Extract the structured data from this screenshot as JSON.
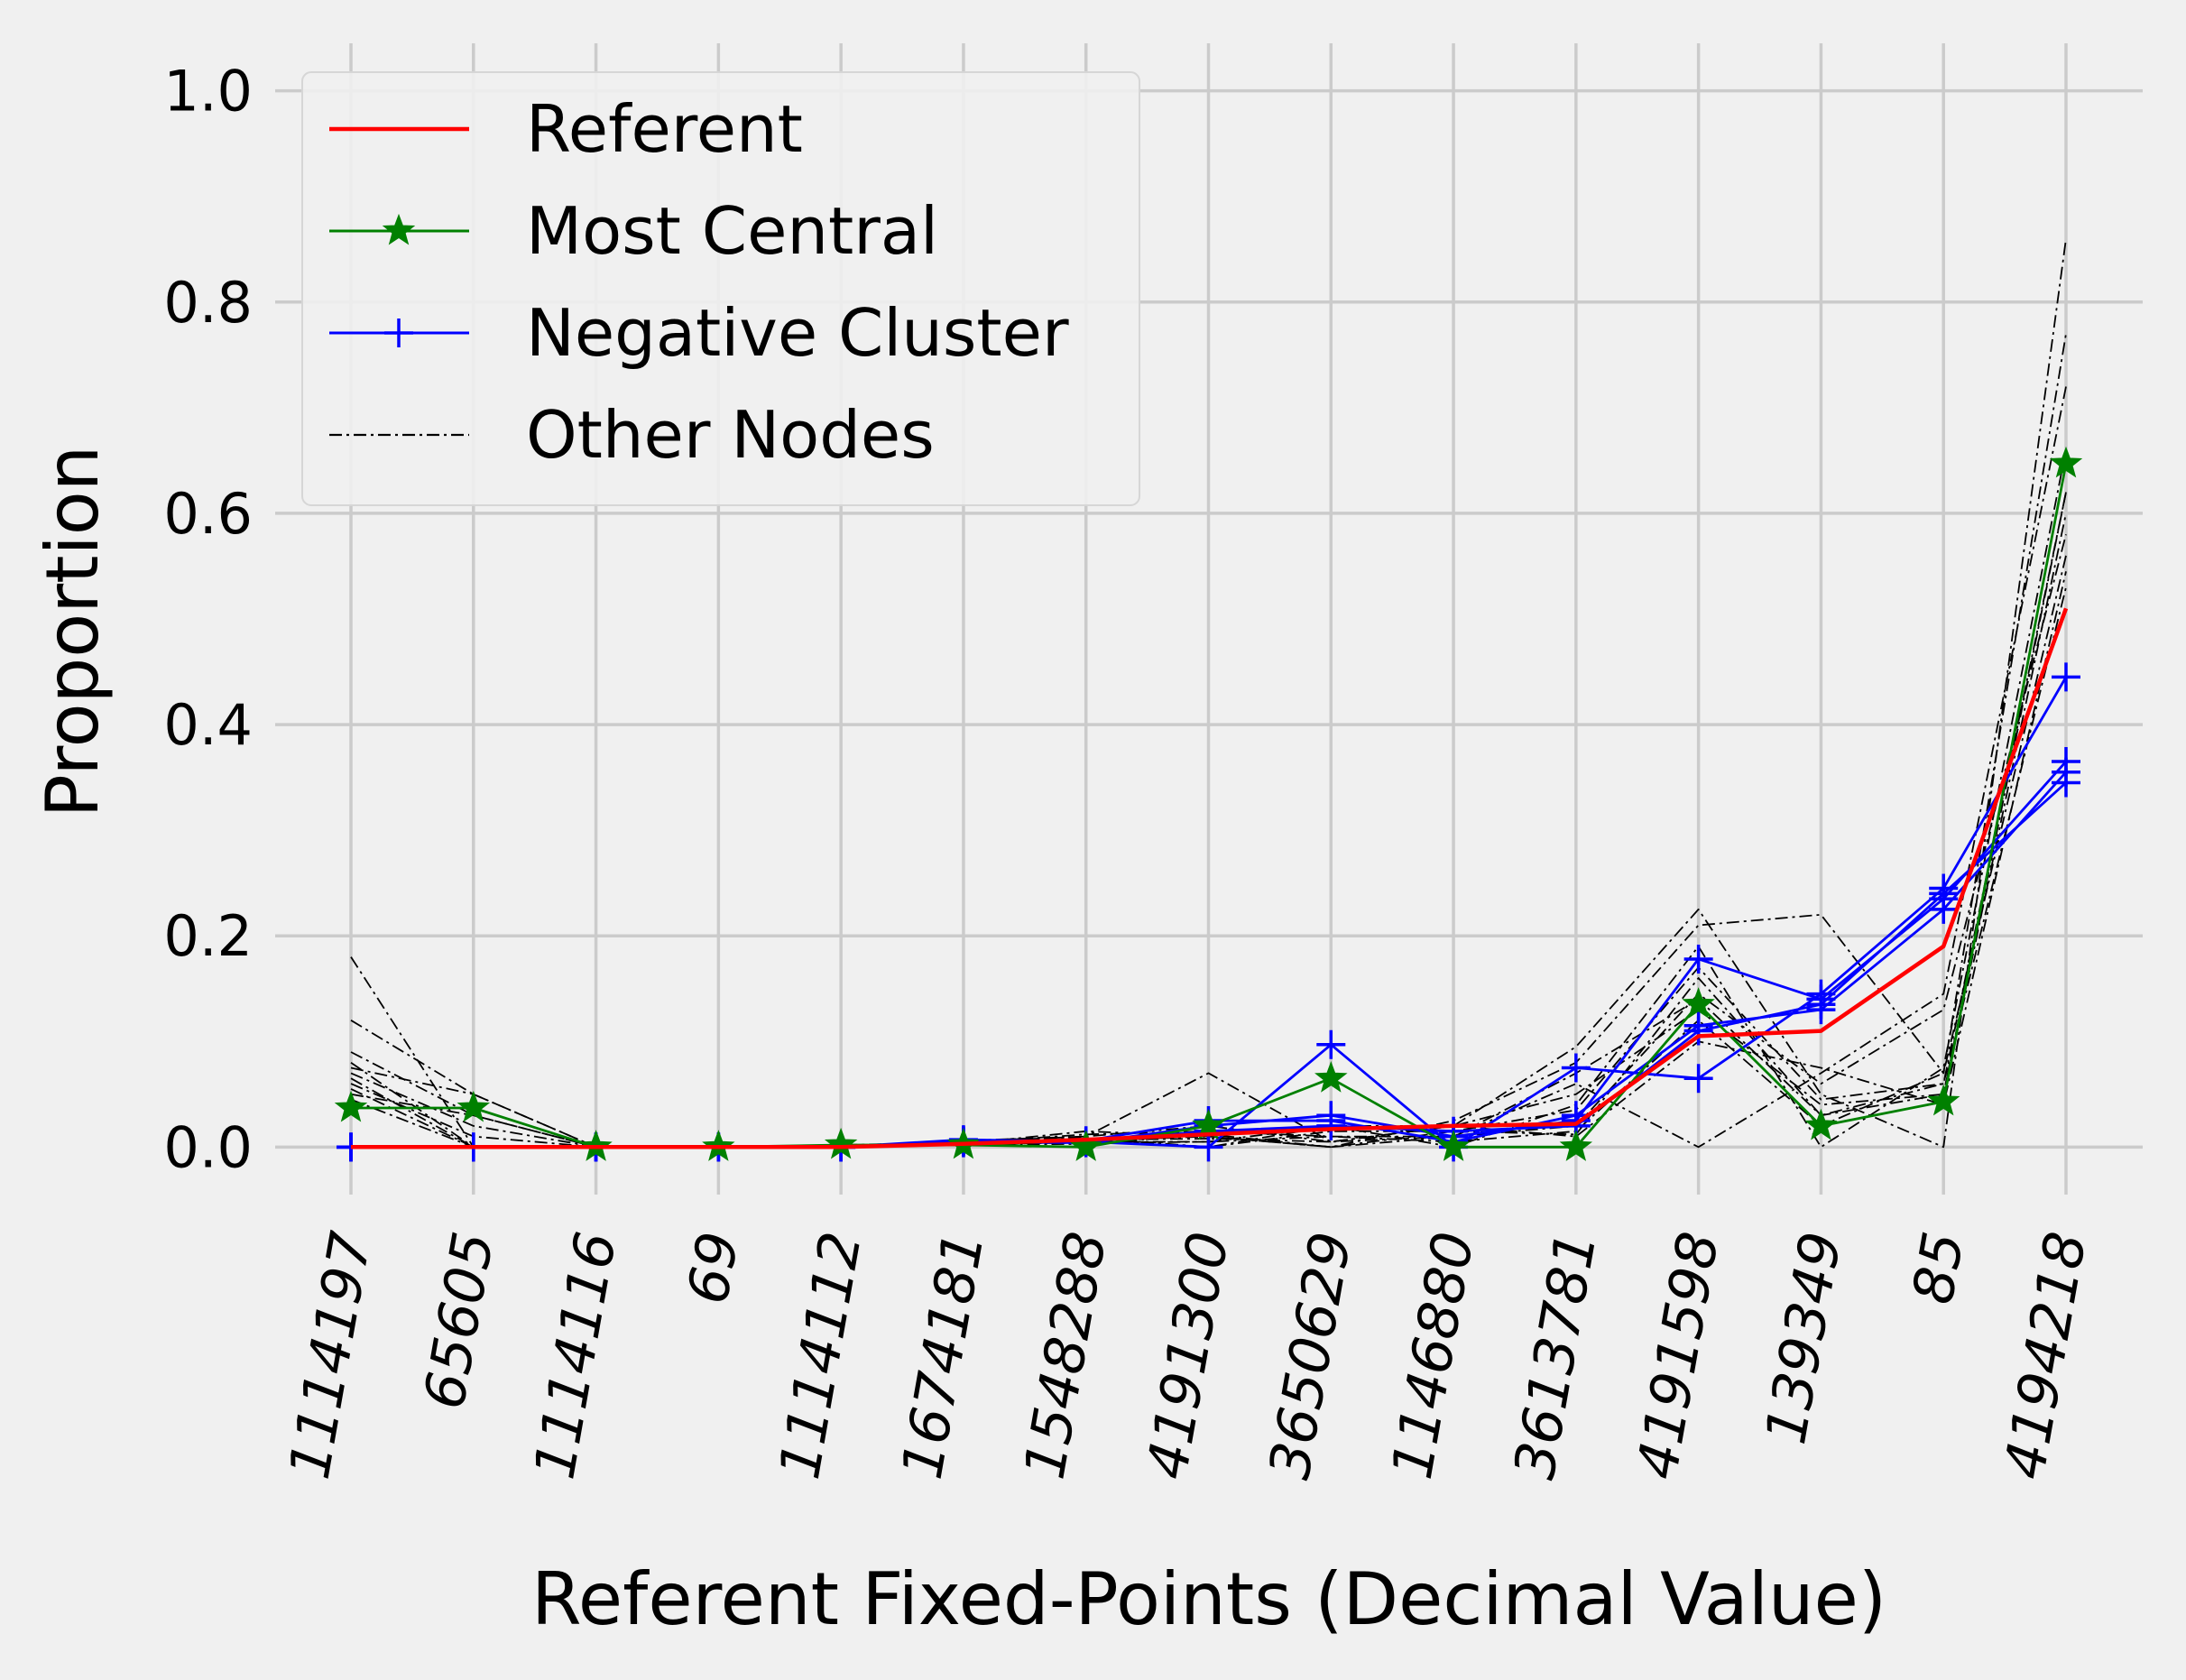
{
  "chart_data": {
    "type": "line",
    "title": "",
    "xlabel": "Referent Fixed-Points (Decimal Value)",
    "ylabel": "Proportion",
    "ylim": [
      -0.045,
      1.045
    ],
    "yticks": [
      "0.0",
      "0.2",
      "0.4",
      "0.6",
      "0.8",
      "1.0"
    ],
    "grid": true,
    "legend_position": "top-left",
    "categories": [
      "1114197",
      "65605",
      "1114116",
      "69",
      "1114112",
      "1674181",
      "1548288",
      "4191300",
      "3650629",
      "1146880",
      "3613781",
      "4191598",
      "139349",
      "85",
      "4194218"
    ],
    "legend": [
      {
        "name": "Referent",
        "color": "#ff0000",
        "style": "solid",
        "marker": "none"
      },
      {
        "name": "Most Central",
        "color": "#008000",
        "style": "solid",
        "marker": "star"
      },
      {
        "name": "Negative Cluster",
        "color": "#0000ff",
        "style": "solid",
        "marker": "plus"
      },
      {
        "name": "Other Nodes",
        "color": "#000000",
        "style": "dashdot",
        "marker": "none"
      }
    ],
    "series": [
      {
        "name": "Referent",
        "color": "#ff0000",
        "values": [
          0.0,
          0.0,
          0.0,
          0.0,
          0.0,
          0.003,
          0.007,
          0.012,
          0.017,
          0.02,
          0.022,
          0.105,
          0.11,
          0.19,
          0.51
        ]
      },
      {
        "name": "Most Central",
        "color": "#008000",
        "values": [
          0.037,
          0.037,
          0.0,
          0.0,
          0.002,
          0.002,
          0.0,
          0.02,
          0.065,
          0.0,
          0.0,
          0.135,
          0.02,
          0.043,
          0.647
        ]
      },
      {
        "name": "Negative Cluster",
        "color": "#0000ff",
        "values": [
          0.0,
          0.0,
          0.0,
          0.0,
          0.0,
          0.007,
          0.005,
          0.0,
          0.097,
          0.0,
          0.075,
          0.065,
          0.145,
          0.245,
          0.445
        ]
      },
      {
        "name": "Negative Cluster",
        "color": "#0000ff",
        "values": [
          0.0,
          0.0,
          0.0,
          0.0,
          0.0,
          0.005,
          0.004,
          0.02,
          0.03,
          0.01,
          0.025,
          0.178,
          0.14,
          0.235,
          0.365
        ]
      },
      {
        "name": "Negative Cluster",
        "color": "#0000ff",
        "values": [
          0.0,
          0.0,
          0.0,
          0.0,
          0.0,
          0.006,
          0.006,
          0.025,
          0.025,
          0.005,
          0.03,
          0.115,
          0.13,
          0.225,
          0.355
        ]
      },
      {
        "name": "Negative Cluster",
        "color": "#0000ff",
        "values": [
          0.0,
          0.0,
          0.0,
          0.0,
          0.0,
          0.004,
          0.005,
          0.015,
          0.02,
          0.015,
          0.02,
          0.11,
          0.135,
          0.24,
          0.345
        ]
      },
      {
        "name": "Other Nodes",
        "color": "#000000",
        "values": [
          0.18,
          0.0,
          0.0,
          0.0,
          0.0,
          0.005,
          0.01,
          0.07,
          0.005,
          0.02,
          0.095,
          0.225,
          0.05,
          0.0,
          0.86
        ]
      },
      {
        "name": "Other Nodes",
        "color": "#000000",
        "values": [
          0.12,
          0.05,
          0.0,
          0.0,
          0.002,
          0.003,
          0.015,
          0.01,
          0.0,
          0.025,
          0.08,
          0.21,
          0.22,
          0.07,
          0.77
        ]
      },
      {
        "name": "Other Nodes",
        "color": "#000000",
        "values": [
          0.09,
          0.03,
          0.0,
          0.0,
          0.0,
          0.004,
          0.012,
          0.015,
          0.01,
          0.01,
          0.06,
          0.0,
          0.07,
          0.145,
          0.72
        ]
      },
      {
        "name": "Other Nodes",
        "color": "#000000",
        "values": [
          0.08,
          0.0,
          0.0,
          0.0,
          0.001,
          0.002,
          0.005,
          0.005,
          0.02,
          0.0,
          0.04,
          0.19,
          0.0,
          0.075,
          0.66
        ]
      },
      {
        "name": "Other Nodes",
        "color": "#000000",
        "values": [
          0.075,
          0.05,
          0.0,
          0.0,
          0.0,
          0.005,
          0.008,
          0.0,
          0.015,
          0.015,
          0.012,
          0.16,
          0.03,
          0.06,
          0.62
        ]
      },
      {
        "name": "Other Nodes",
        "color": "#000000",
        "values": [
          0.07,
          0.02,
          0.0,
          0.0,
          0.0,
          0.006,
          0.01,
          0.02,
          0.005,
          0.02,
          0.05,
          0.13,
          0.04,
          0.05,
          0.6
        ]
      },
      {
        "name": "Other Nodes",
        "color": "#000000",
        "values": [
          0.065,
          0.0,
          0.0,
          0.0,
          0.002,
          0.004,
          0.006,
          0.01,
          0.0,
          0.01,
          0.02,
          0.145,
          0.06,
          0.13,
          0.58
        ]
      },
      {
        "name": "Other Nodes",
        "color": "#000000",
        "values": [
          0.06,
          0.01,
          0.0,
          0.0,
          0.0,
          0.003,
          0.004,
          0.005,
          0.01,
          0.005,
          0.015,
          0.12,
          0.02,
          0.07,
          0.56
        ]
      },
      {
        "name": "Other Nodes",
        "color": "#000000",
        "values": [
          0.055,
          0.0,
          0.0,
          0.0,
          0.001,
          0.005,
          0.009,
          0.0,
          0.02,
          0.02,
          0.01,
          0.1,
          0.075,
          0.04,
          0.545
        ]
      },
      {
        "name": "Other Nodes",
        "color": "#000000",
        "values": [
          0.05,
          0.03,
          0.0,
          0.0,
          0.0,
          0.002,
          0.003,
          0.012,
          0.0,
          0.015,
          0.035,
          0.17,
          0.045,
          0.06,
          0.53
        ]
      },
      {
        "name": "Other Nodes",
        "color": "#000000",
        "values": [
          0.045,
          0.0,
          0.0,
          0.0,
          0.0,
          0.004,
          0.007,
          0.008,
          0.005,
          0.01,
          0.07,
          0.14,
          0.03,
          0.05,
          0.62
        ]
      }
    ]
  }
}
